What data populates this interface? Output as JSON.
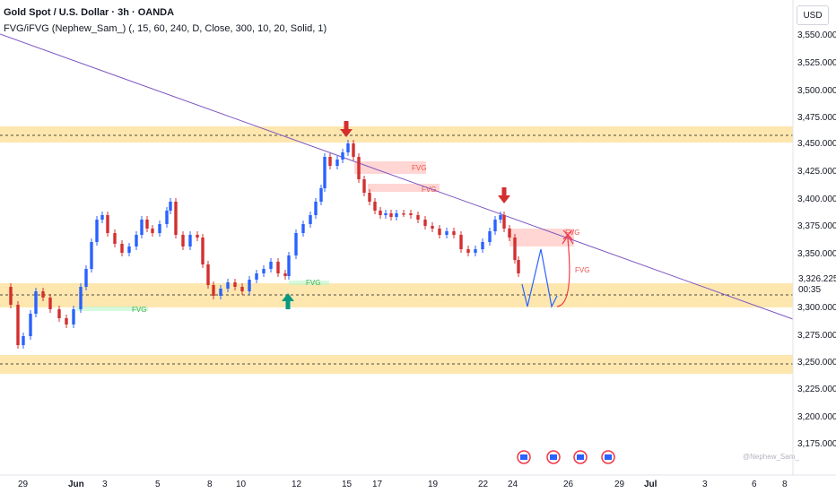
{
  "legend": {
    "title": "Gold Spot / U.S. Dollar · 3h · OANDA",
    "indicator_name": "FVG/iFVG (Nephew_Sam_)",
    "indicator_params": "(, 15, 60, 240, D, Close, 300, 10, 20, Solid, 1)"
  },
  "axis": {
    "currency": "USD",
    "y_ticks": [
      "3,550.000",
      "3,525.000",
      "3,500.000",
      "3,475.000",
      "3,450.000",
      "3,425.000",
      "3,400.000",
      "3,375.000",
      "3,350.000",
      "3,300.000",
      "3,275.000",
      "3,250.000",
      "3,225.000",
      "3,200.000",
      "3,175.000"
    ],
    "x_ticks": [
      "29",
      "Jun",
      "3",
      "5",
      "8",
      "10",
      "12",
      "15",
      "17",
      "19",
      "22",
      "24",
      "26",
      "29",
      "Jul",
      "3",
      "6",
      "8"
    ]
  },
  "current_price": {
    "value": "3,326.225",
    "countdown": "00:35"
  },
  "fvg_labels": [
    "FVG",
    "FVG",
    "FVG",
    "FVG",
    "FVG",
    "FVG"
  ],
  "watermark": "@Nephew_Sam_",
  "colors": {
    "up": "#2962ff",
    "down": "#d32f2f",
    "zone": "#fbc02d",
    "trendline": "#7e57c2",
    "arrow_down": "#d32f2f",
    "arrow_up": "#089981",
    "projection_blue": "#2962ff",
    "projection_red": "#f23645"
  },
  "icons": [
    "red-down-arrow-icon",
    "green-up-arrow-icon",
    "economic-event-icon"
  ]
}
